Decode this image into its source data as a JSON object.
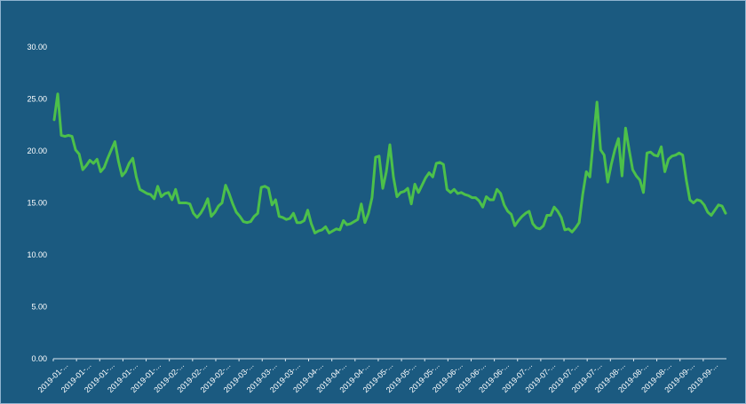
{
  "chart_data": {
    "type": "line",
    "title": "",
    "xlabel": "",
    "ylabel": "",
    "ylim": [
      0,
      30
    ],
    "yticks": [
      "0.00",
      "5.00",
      "10.00",
      "15.00",
      "20.00",
      "25.00",
      "30.00"
    ],
    "grid": false,
    "legend": "none",
    "x_tick_labels": [
      "2019-01-...",
      "2019-01-...",
      "2019-01-...",
      "2019-01-...",
      "2019-01-...",
      "2019-02-...",
      "2019-02-...",
      "2019-02-...",
      "2019-03-...",
      "2019-03-...",
      "2019-03-...",
      "2019-04-...",
      "2019-04-...",
      "2019-04-...",
      "2019-05-...",
      "2019-05-...",
      "2019-05-...",
      "2019-06-...",
      "2019-06-...",
      "2019-06-...",
      "2019-07-...",
      "2019-07-...",
      "2019-07-...",
      "2019-07-...",
      "2019-08-...",
      "2019-08-...",
      "2019-08-...",
      "2019-09-...",
      "2019-09-..."
    ],
    "line_color": "#4cc04a",
    "background_color": "#1b5a80",
    "series": [
      {
        "values": [
          23.0,
          25.5,
          21.5,
          21.4,
          21.5,
          21.4,
          20.1,
          19.7,
          18.2,
          18.6,
          19.1,
          18.8,
          19.2,
          18.0,
          18.4,
          19.3,
          20.1,
          20.9,
          19.0,
          17.6,
          18.0,
          18.8,
          19.3,
          17.5,
          16.3,
          16.1,
          15.9,
          15.8,
          15.4,
          16.6,
          15.6,
          15.9,
          16.0,
          15.3,
          16.3,
          15.0,
          15.0,
          15.0,
          14.9,
          14.0,
          13.6,
          14.0,
          14.6,
          15.4,
          13.7,
          14.1,
          14.7,
          15.0,
          16.7,
          15.9,
          14.9,
          14.1,
          13.7,
          13.2,
          13.1,
          13.2,
          13.7,
          14.0,
          16.5,
          16.6,
          16.4,
          14.8,
          15.3,
          13.7,
          13.6,
          13.4,
          13.5,
          14.0,
          13.1,
          13.1,
          13.3,
          14.3,
          13.0,
          12.1,
          12.3,
          12.4,
          12.7,
          12.1,
          12.3,
          12.5,
          12.4,
          13.3,
          12.9,
          13.0,
          13.2,
          13.4,
          14.9,
          13.1,
          14.0,
          15.5,
          19.4,
          19.5,
          16.4,
          18.0,
          20.6,
          17.5,
          15.6,
          16.0,
          16.1,
          16.4,
          14.9,
          16.8,
          16.0,
          16.7,
          17.4,
          17.9,
          17.5,
          18.8,
          18.9,
          18.7,
          16.3,
          16.0,
          16.3,
          15.9,
          16.0,
          15.8,
          15.7,
          15.5,
          15.5,
          15.2,
          14.6,
          15.6,
          15.3,
          15.3,
          16.3,
          15.9,
          14.8,
          14.2,
          13.9,
          12.8,
          13.3,
          13.7,
          14.0,
          14.2,
          13.0,
          12.6,
          12.5,
          12.8,
          13.8,
          13.8,
          14.6,
          14.2,
          13.6,
          12.4,
          12.5,
          12.2,
          12.6,
          13.1,
          15.8,
          18.0,
          17.5,
          21.1,
          24.7,
          20.1,
          19.6,
          17.0,
          18.7,
          20.1,
          21.2,
          17.6,
          22.2,
          20.1,
          18.2,
          17.6,
          17.2,
          16.0,
          19.8,
          19.9,
          19.6,
          19.5,
          20.4,
          18.0,
          19.2,
          19.5,
          19.6,
          19.8,
          19.6,
          17.2,
          15.3,
          15.0,
          15.3,
          15.2,
          14.8,
          14.1,
          13.8,
          14.3,
          14.8,
          14.7,
          14.0
        ]
      }
    ]
  }
}
